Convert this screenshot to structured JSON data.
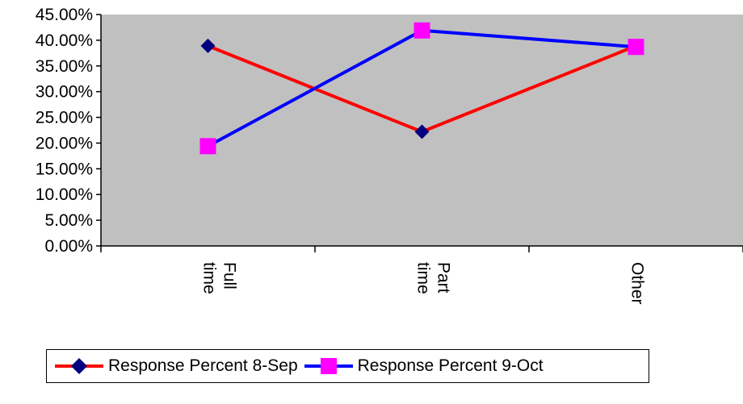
{
  "chart_data": {
    "type": "line",
    "categories": [
      "Full time",
      "Part time",
      "Other"
    ],
    "series": [
      {
        "name": "Response Percent 8-Sep",
        "values": [
          0.389,
          0.222,
          0.389
        ],
        "line_color": "#ff0000",
        "marker_color": "#000080",
        "marker": "diamond"
      },
      {
        "name": "Response Percent 9-Oct",
        "values": [
          0.194,
          0.419,
          0.387
        ],
        "line_color": "#0000ff",
        "marker_color": "#ff00ff",
        "marker": "square"
      }
    ],
    "y_ticks": [
      "0.00%",
      "5.00%",
      "10.00%",
      "15.00%",
      "20.00%",
      "25.00%",
      "30.00%",
      "35.00%",
      "40.00%",
      "45.00%"
    ],
    "ylim": [
      0,
      0.45
    ],
    "plot_background": "#c0c0c0",
    "legend_position": "bottom",
    "grid": false
  }
}
